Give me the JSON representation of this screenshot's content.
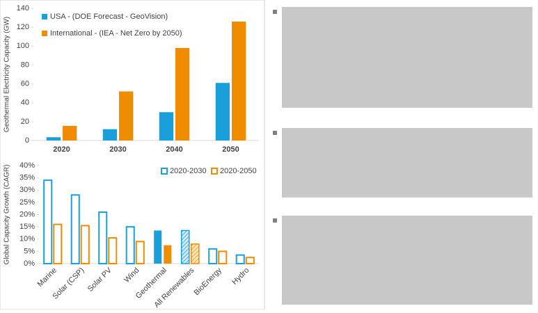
{
  "chart_data": [
    {
      "type": "bar",
      "y_label": "Geothermal Electricity Capacity (GW)",
      "categories": [
        "2020",
        "2030",
        "2040",
        "2050"
      ],
      "series": [
        {
          "name": "USA - (DOE Forecast - GeoVision)",
          "color": "#1a9fdb",
          "values": [
            3.5,
            12,
            30,
            61
          ]
        },
        {
          "name": "International - (IEA - Net Zero by 2050)",
          "color": "#f08c00",
          "values": [
            15.5,
            52,
            98,
            126
          ]
        }
      ],
      "ylim": [
        0,
        140
      ],
      "yticks": [
        0,
        20,
        40,
        60,
        80,
        100,
        120,
        140
      ],
      "grid": false,
      "legend": "top-left"
    },
    {
      "type": "bar",
      "y_label": "Global Capacity Growth (CAGR)",
      "categories": [
        "Marine",
        "Solar (CSP)",
        "Solar PV",
        "Wind",
        "Geothermal",
        "All Renewables",
        "BioEnergy",
        "Hydro"
      ],
      "point_styles": [
        "outline",
        "outline",
        "outline",
        "outline",
        "solid",
        "hatched",
        "outline",
        "outline"
      ],
      "series": [
        {
          "name": "2020-2030",
          "color": "#1a9fdb",
          "values": [
            34,
            28,
            21,
            15,
            13.5,
            13.5,
            6,
            3.5
          ]
        },
        {
          "name": "2020-2050",
          "color": "#f08c00",
          "values": [
            16,
            15.5,
            10.5,
            9,
            7.5,
            8,
            5,
            2.5
          ]
        }
      ],
      "ylim": [
        0,
        40
      ],
      "yticks": [
        {
          "value": 0,
          "label": "0%"
        },
        {
          "value": 5,
          "label": "5%"
        },
        {
          "value": 10,
          "label": "10%"
        },
        {
          "value": 15,
          "label": "15%"
        },
        {
          "value": 20,
          "label": "20%"
        },
        {
          "value": 25,
          "label": "25%"
        },
        {
          "value": 30,
          "label": "30%"
        },
        {
          "value": 35,
          "label": "35%"
        },
        {
          "value": 40,
          "label": "40%"
        }
      ],
      "grid": false,
      "legend": "top-right",
      "rotate_labels": true
    }
  ]
}
